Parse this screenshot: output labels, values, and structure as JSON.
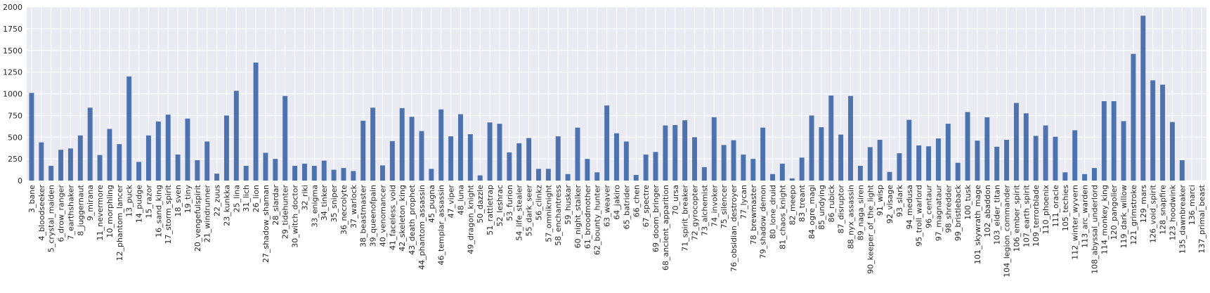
{
  "chart_data": {
    "type": "bar",
    "title": "",
    "xlabel": "",
    "ylabel": "",
    "ylim": [
      0,
      2000
    ],
    "yticks": [
      0,
      250,
      500,
      750,
      1000,
      1250,
      1500,
      1750,
      2000
    ],
    "grid": true,
    "legend": "none",
    "colors": {
      "bar": "#4c72b0",
      "background": "#eaeaf2",
      "grid": "#ffffff"
    },
    "categories": [
      "3_bane",
      "4_bloodseeker",
      "5_crystal_maiden",
      "6_drow_ranger",
      "7_earthshaker",
      "8_juggernaut",
      "9_mirana",
      "11_nevermore",
      "10_morphling",
      "12_phantom_lancer",
      "13_puck",
      "14_pudge",
      "15_razor",
      "16_sand_king",
      "17_storm_spirit",
      "18_sven",
      "19_tiny",
      "20_vengefulspirit",
      "21_windrunner",
      "22_zuus",
      "23_kunkka",
      "25_lina",
      "31_lich",
      "26_lion",
      "27_shadow_shaman",
      "28_slardar",
      "29_tidehunter",
      "30_witch_doctor",
      "32_riki",
      "33_enigma",
      "34_tinker",
      "35_sniper",
      "36_necrolyte",
      "37_warlock",
      "38_beastmaster",
      "39_queenofpain",
      "40_venomancer",
      "41_faceless_void",
      "42_skeleton_king",
      "43_death_prophet",
      "44_phantom_assassin",
      "45_pugna",
      "46_templar_assassin",
      "47_viper",
      "48_luna",
      "49_dragon_knight",
      "50_dazzle",
      "51_rattletrap",
      "52_leshrac",
      "53_furion",
      "54_life_stealer",
      "55_dark_seer",
      "56_clinkz",
      "57_omniknight",
      "58_enchantress",
      "59_huskar",
      "60_night_stalker",
      "61_broodmother",
      "62_bounty_hunter",
      "63_weaver",
      "64_jakiro",
      "65_batrider",
      "66_chen",
      "67_spectre",
      "69_doom_bringer",
      "68_ancient_apparition",
      "70_ursa",
      "71_spirit_breaker",
      "72_gyrocopter",
      "73_alchemist",
      "74_invoker",
      "75_silencer",
      "76_obsidian_destroyer",
      "77_lycan",
      "78_brewmaster",
      "79_shadow_demon",
      "80_lone_druid",
      "81_chaos_knight",
      "82_meepo",
      "83_treant",
      "84_ogre_magi",
      "85_undying",
      "86_rubick",
      "87_disruptor",
      "88_nyx_assassin",
      "89_naga_siren",
      "90_keeper_of_the_light",
      "91_wisp",
      "92_visage",
      "93_slark",
      "94_medusa",
      "95_troll_warlord",
      "96_centaur",
      "97_magnataur",
      "98_shredder",
      "99_bristleback",
      "100_tusk",
      "101_skywrath_mage",
      "102_abaddon",
      "103_elder_titan",
      "104_legion_commander",
      "106_ember_spirit",
      "107_earth_spirit",
      "109_terrorblade",
      "110_phoenix",
      "111_oracle",
      "105_techies",
      "112_winter_wyvern",
      "113_arc_warden",
      "108_abyssal_underlord",
      "114_monkey_king",
      "120_pangolier",
      "119_dark_willow",
      "121_grimstroke",
      "129_mars",
      "126_void_spirit",
      "128_snapfire",
      "123_hoodwink",
      "135_dawnbreaker",
      "136_marci",
      "137_primal_beast"
    ],
    "values": [
      1010,
      440,
      170,
      355,
      370,
      520,
      840,
      295,
      595,
      420,
      1200,
      215,
      520,
      680,
      760,
      300,
      715,
      235,
      450,
      80,
      750,
      1035,
      170,
      1360,
      320,
      250,
      975,
      170,
      195,
      170,
      230,
      125,
      145,
      110,
      690,
      840,
      175,
      455,
      835,
      735,
      570,
      135,
      820,
      510,
      765,
      535,
      60,
      670,
      655,
      325,
      430,
      490,
      135,
      135,
      510,
      75,
      610,
      250,
      95,
      865,
      545,
      450,
      65,
      300,
      330,
      635,
      640,
      695,
      500,
      155,
      730,
      410,
      465,
      300,
      250,
      610,
      75,
      195,
      25,
      265,
      750,
      615,
      980,
      530,
      975,
      170,
      385,
      470,
      100,
      315,
      700,
      405,
      395,
      485,
      655,
      205,
      790,
      460,
      730,
      390,
      470,
      895,
      775,
      515,
      635,
      505,
      95,
      580,
      75,
      145,
      915,
      915,
      685,
      1460,
      1900,
      1155,
      1105,
      675,
      235,
      0,
      0
    ]
  }
}
